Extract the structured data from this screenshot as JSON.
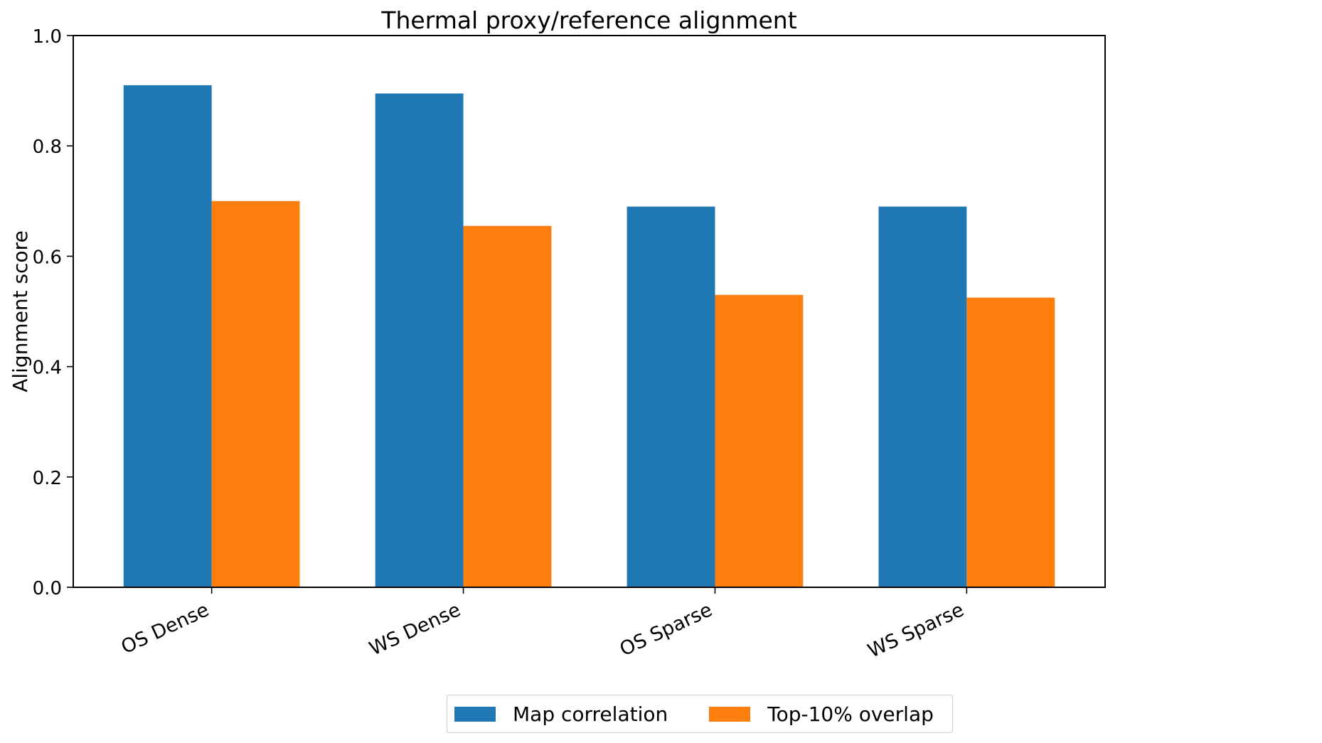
{
  "chart_data": {
    "type": "bar",
    "title": "Thermal proxy/reference alignment",
    "xlabel": "",
    "ylabel": "Alignment score",
    "categories": [
      "OS Dense",
      "WS Dense",
      "OS Sparse",
      "WS Sparse"
    ],
    "series": [
      {
        "name": "Map correlation",
        "color": "#1f77b4",
        "values": [
          0.91,
          0.895,
          0.69,
          0.69
        ]
      },
      {
        "name": "Top-10% overlap",
        "color": "#ff7f0e",
        "values": [
          0.7,
          0.655,
          0.53,
          0.525
        ]
      }
    ],
    "ylim": [
      0.0,
      1.0
    ],
    "yticks": [
      "0.0",
      "0.2",
      "0.4",
      "0.6",
      "0.8",
      "1.0"
    ],
    "grid": false,
    "legend_position": "bottom-center"
  }
}
